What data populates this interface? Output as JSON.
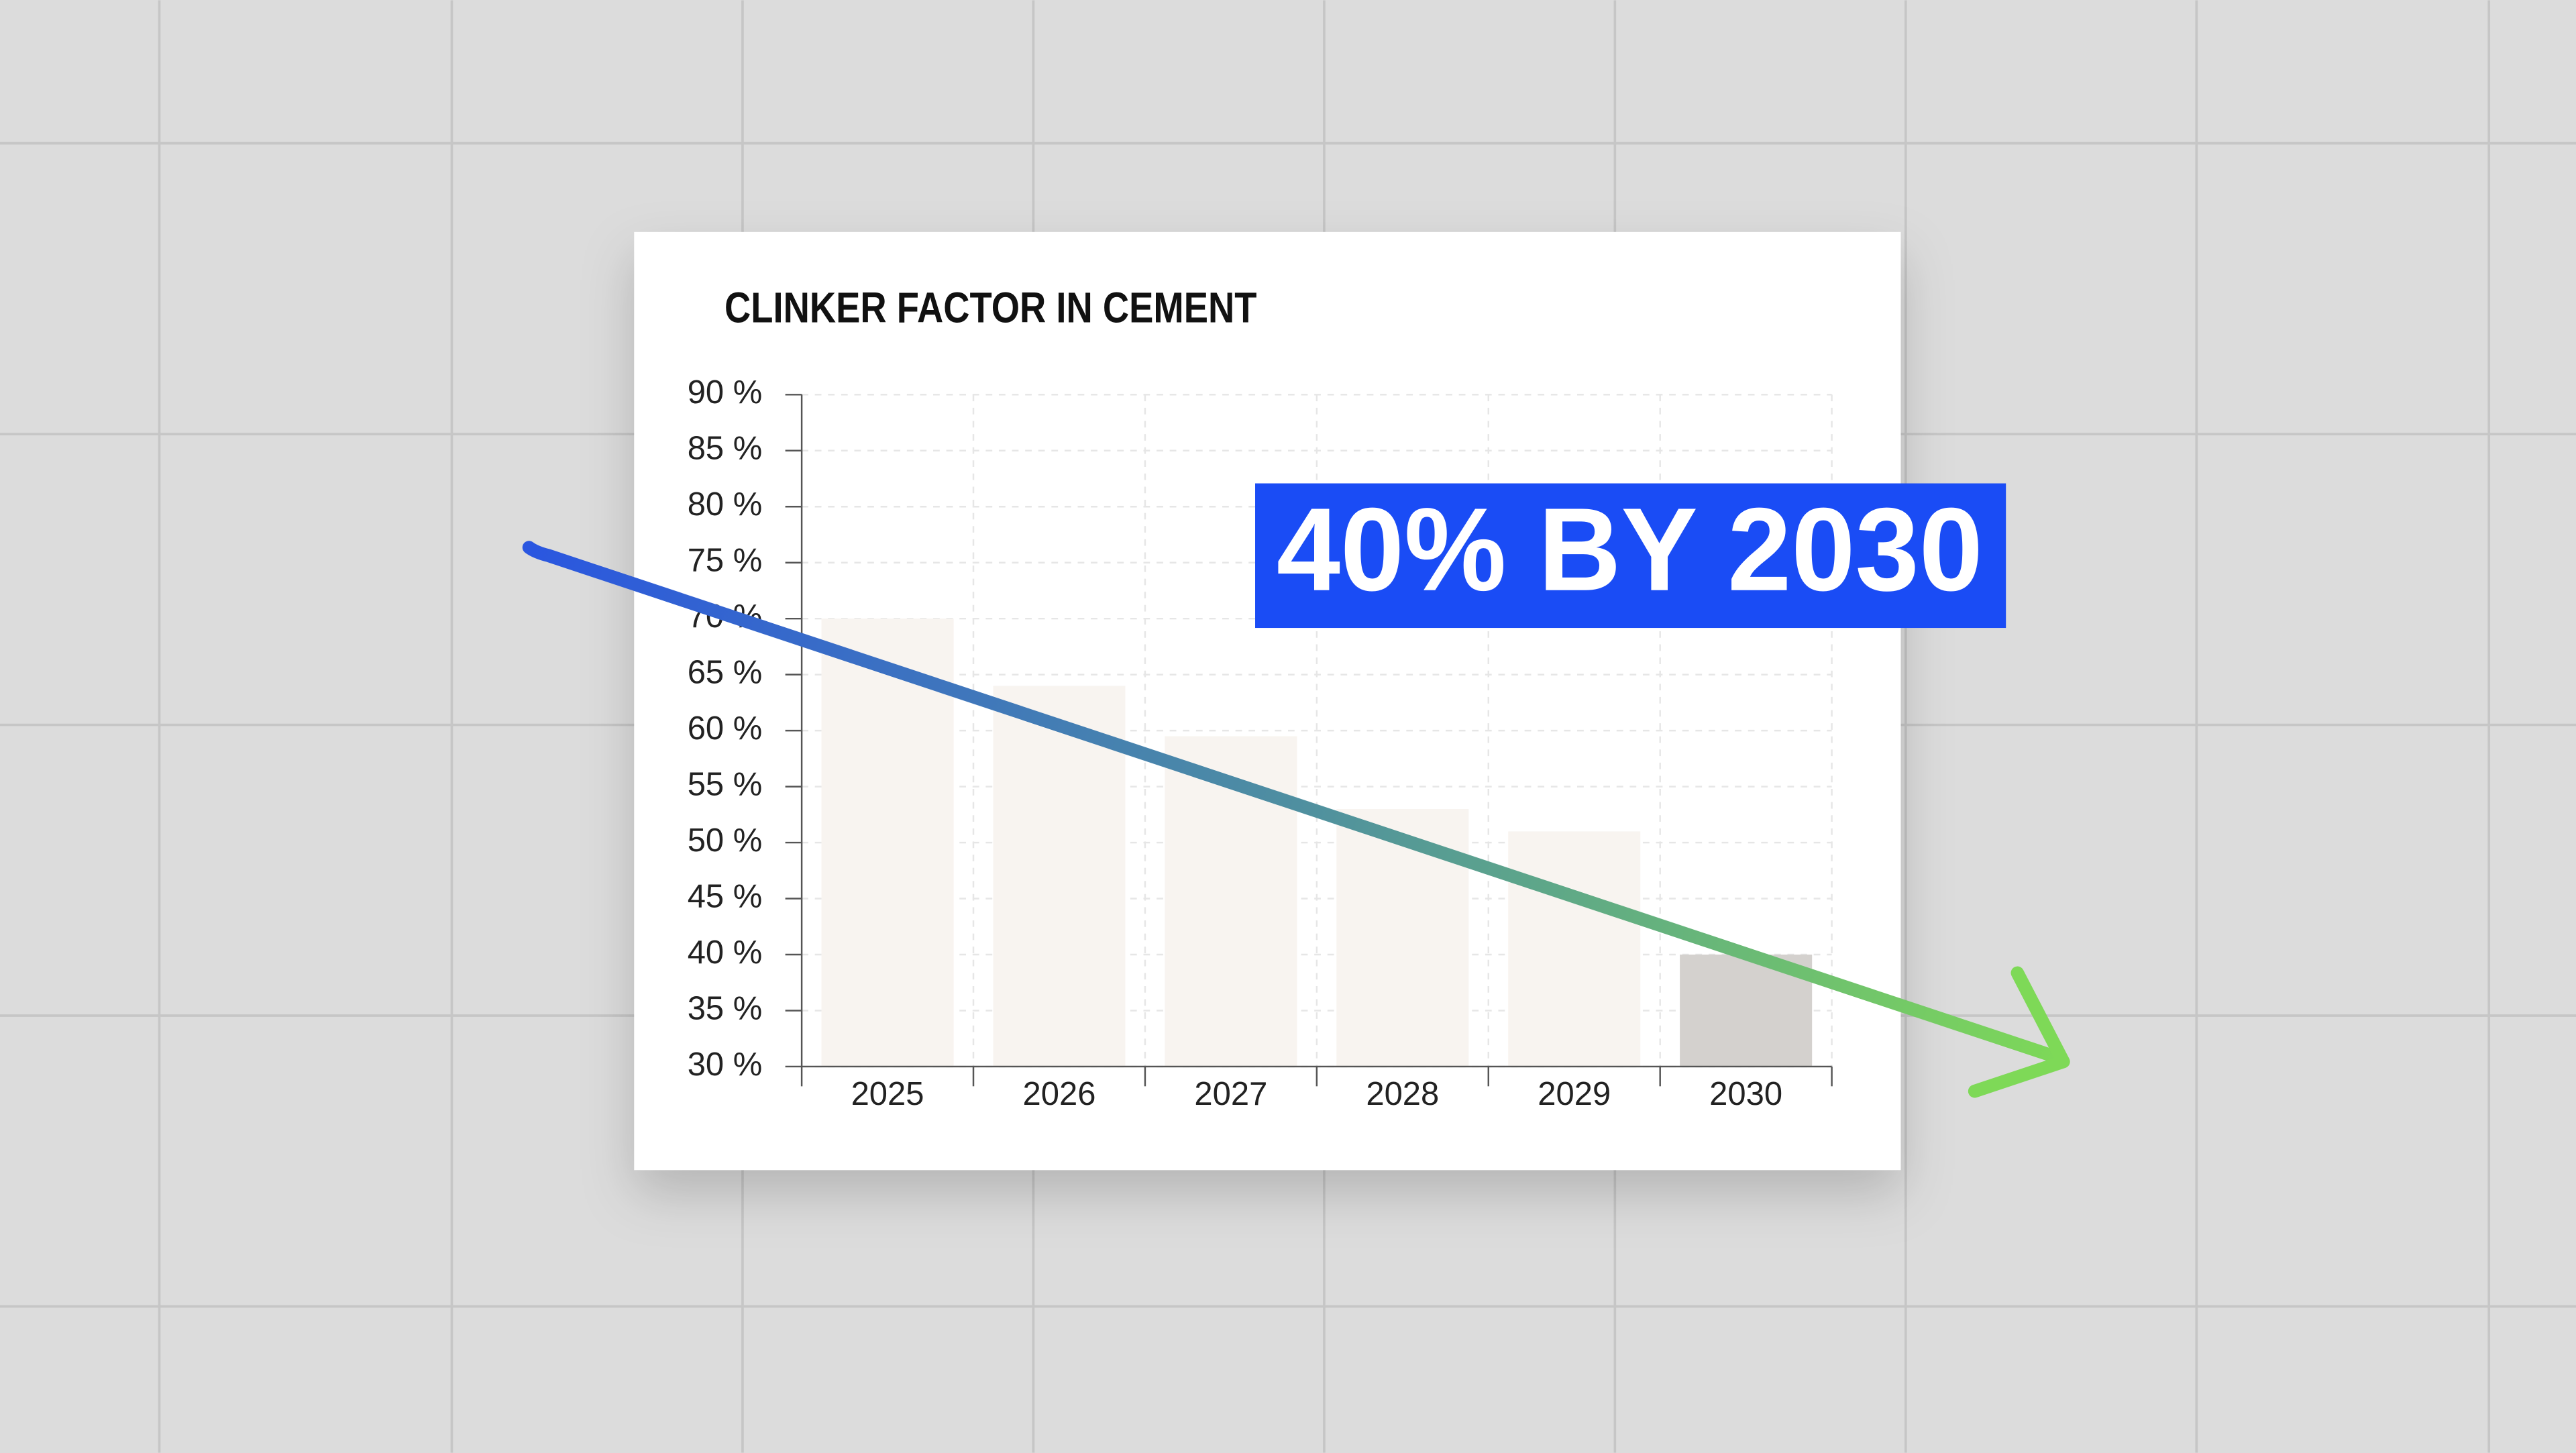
{
  "chart_data": {
    "type": "bar",
    "title": "CLINKER FACTOR IN CEMENT",
    "annotation": "40% BY 2030",
    "categories": [
      "2025",
      "2026",
      "2027",
      "2028",
      "2029",
      "2030"
    ],
    "values": [
      70,
      64,
      59.5,
      53,
      51,
      40
    ],
    "colors": [
      "#f8f4f0",
      "#f8f4f0",
      "#f8f4f0",
      "#f8f4f0",
      "#f8f4f0",
      "#d4d1ce"
    ],
    "ylim": [
      30,
      90
    ],
    "yticks": [
      {
        "value": 30,
        "label": "30 %"
      },
      {
        "value": 35,
        "label": "35 %"
      },
      {
        "value": 40,
        "label": "40 %"
      },
      {
        "value": 45,
        "label": "45 %"
      },
      {
        "value": 50,
        "label": "50 %"
      },
      {
        "value": 55,
        "label": "55 %"
      },
      {
        "value": 60,
        "label": "60 %"
      },
      {
        "value": 65,
        "label": "65 %"
      },
      {
        "value": 70,
        "label": "70 %"
      },
      {
        "value": 75,
        "label": "75 %"
      },
      {
        "value": 80,
        "label": "80 %"
      },
      {
        "value": 85,
        "label": "85 %"
      },
      {
        "value": 90,
        "label": "90 %"
      }
    ],
    "grid": true
  }
}
